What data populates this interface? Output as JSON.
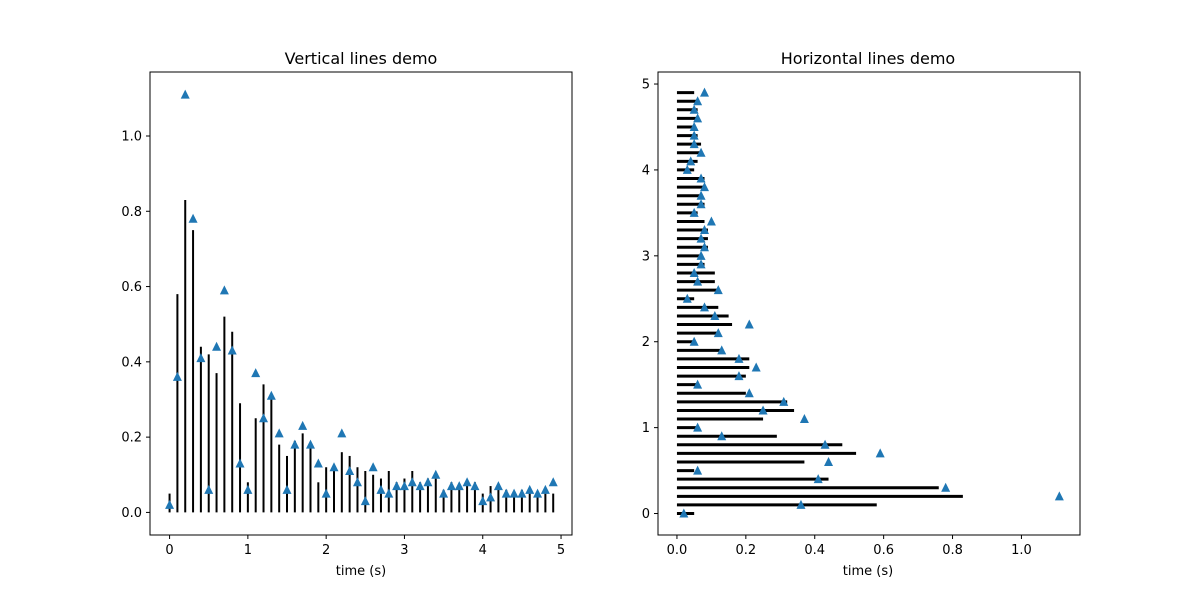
{
  "chart_data": [
    {
      "type": "line",
      "title": "Vertical lines demo",
      "xlabel": "time (s)",
      "ylabel": "",
      "xlim": [
        -0.25,
        5.14
      ],
      "ylim": [
        -0.06,
        1.17
      ],
      "xticks": [
        0,
        1,
        2,
        3,
        4,
        5
      ],
      "yticks": [
        0.0,
        0.2,
        0.4,
        0.6,
        0.8,
        1.0
      ],
      "xtick_labels": [
        "0",
        "1",
        "2",
        "3",
        "4",
        "5"
      ],
      "ytick_labels": [
        "0.0",
        "0.2",
        "0.4",
        "0.6",
        "0.8",
        "1.0"
      ],
      "grid": false,
      "marker_color": "#1f77b4",
      "line_color": "#000000",
      "series": [
        {
          "x": [
            0.0,
            0.1,
            0.2,
            0.3,
            0.4,
            0.5,
            0.6,
            0.7,
            0.8,
            0.9,
            1.0,
            1.1,
            1.2,
            1.3,
            1.4,
            1.5,
            1.6,
            1.7,
            1.8,
            1.9,
            2.0,
            2.1,
            2.2,
            2.3,
            2.4,
            2.5,
            2.6,
            2.7,
            2.8,
            2.9,
            3.0,
            3.1,
            3.2,
            3.3,
            3.4,
            3.5,
            3.6,
            3.7,
            3.8,
            3.9,
            4.0,
            4.1,
            4.2,
            4.3,
            4.4,
            4.5,
            4.6,
            4.7,
            4.8,
            4.9
          ],
          "lines_top": [
            0.05,
            0.58,
            0.83,
            0.75,
            0.44,
            0.42,
            0.37,
            0.52,
            0.48,
            0.29,
            0.08,
            0.25,
            0.34,
            0.3,
            0.18,
            0.15,
            0.19,
            0.21,
            0.17,
            0.08,
            0.12,
            0.11,
            0.16,
            0.15,
            0.12,
            0.11,
            0.1,
            0.09,
            0.11,
            0.08,
            0.09,
            0.11,
            0.08,
            0.09,
            0.09,
            0.06,
            0.08,
            0.07,
            0.08,
            0.08,
            0.05,
            0.07,
            0.07,
            0.06,
            0.05,
            0.06,
            0.06,
            0.05,
            0.05,
            0.05
          ],
          "markers": [
            0.02,
            0.36,
            1.11,
            0.78,
            0.41,
            0.06,
            0.44,
            0.59,
            0.43,
            0.13,
            0.06,
            0.37,
            0.25,
            0.31,
            0.21,
            0.06,
            0.18,
            0.23,
            0.18,
            0.13,
            0.05,
            0.12,
            0.21,
            0.11,
            0.08,
            0.03,
            0.12,
            0.06,
            0.05,
            0.07,
            0.07,
            0.08,
            0.07,
            0.08,
            0.1,
            0.05,
            0.07,
            0.07,
            0.08,
            0.07,
            0.03,
            0.04,
            0.07,
            0.05,
            0.05,
            0.05,
            0.06,
            0.05,
            0.06,
            0.08
          ]
        }
      ]
    },
    {
      "type": "line",
      "title": "Horizontal lines demo",
      "xlabel": "time (s)",
      "ylabel": "",
      "xlim": [
        -0.055,
        1.17
      ],
      "ylim": [
        -0.25,
        5.14
      ],
      "xticks": [
        0.0,
        0.2,
        0.4,
        0.6,
        0.8,
        1.0
      ],
      "yticks": [
        0,
        1,
        2,
        3,
        4,
        5
      ],
      "xtick_labels": [
        "0.0",
        "0.2",
        "0.4",
        "0.6",
        "0.8",
        "1.0"
      ],
      "ytick_labels": [
        "0",
        "1",
        "2",
        "3",
        "4",
        "5"
      ],
      "grid": false,
      "marker_color": "#1f77b4",
      "line_color": "#000000",
      "series": [
        {
          "y": [
            0.0,
            0.1,
            0.2,
            0.3,
            0.4,
            0.5,
            0.6,
            0.7,
            0.8,
            0.9,
            1.0,
            1.1,
            1.2,
            1.3,
            1.4,
            1.5,
            1.6,
            1.7,
            1.8,
            1.9,
            2.0,
            2.1,
            2.2,
            2.3,
            2.4,
            2.5,
            2.6,
            2.7,
            2.8,
            2.9,
            3.0,
            3.1,
            3.2,
            3.3,
            3.4,
            3.5,
            3.6,
            3.7,
            3.8,
            3.9,
            4.0,
            4.1,
            4.2,
            4.3,
            4.4,
            4.5,
            4.6,
            4.7,
            4.8,
            4.9
          ],
          "lines_right": [
            0.05,
            0.58,
            0.83,
            0.76,
            0.44,
            0.05,
            0.37,
            0.52,
            0.48,
            0.29,
            0.06,
            0.25,
            0.34,
            0.32,
            0.2,
            0.06,
            0.2,
            0.21,
            0.21,
            0.13,
            0.05,
            0.12,
            0.16,
            0.15,
            0.12,
            0.05,
            0.12,
            0.11,
            0.11,
            0.08,
            0.07,
            0.09,
            0.09,
            0.09,
            0.08,
            0.06,
            0.08,
            0.07,
            0.08,
            0.08,
            0.05,
            0.06,
            0.07,
            0.07,
            0.06,
            0.05,
            0.06,
            0.06,
            0.06,
            0.05
          ],
          "markers": [
            0.02,
            0.36,
            1.11,
            0.78,
            0.41,
            0.06,
            0.44,
            0.59,
            0.43,
            0.13,
            0.06,
            0.37,
            0.25,
            0.31,
            0.21,
            0.06,
            0.18,
            0.23,
            0.18,
            0.13,
            0.05,
            0.12,
            0.21,
            0.11,
            0.08,
            0.03,
            0.12,
            0.06,
            0.05,
            0.07,
            0.07,
            0.08,
            0.07,
            0.08,
            0.1,
            0.05,
            0.07,
            0.07,
            0.08,
            0.07,
            0.03,
            0.04,
            0.07,
            0.05,
            0.05,
            0.05,
            0.06,
            0.05,
            0.06,
            0.08
          ]
        }
      ]
    }
  ]
}
